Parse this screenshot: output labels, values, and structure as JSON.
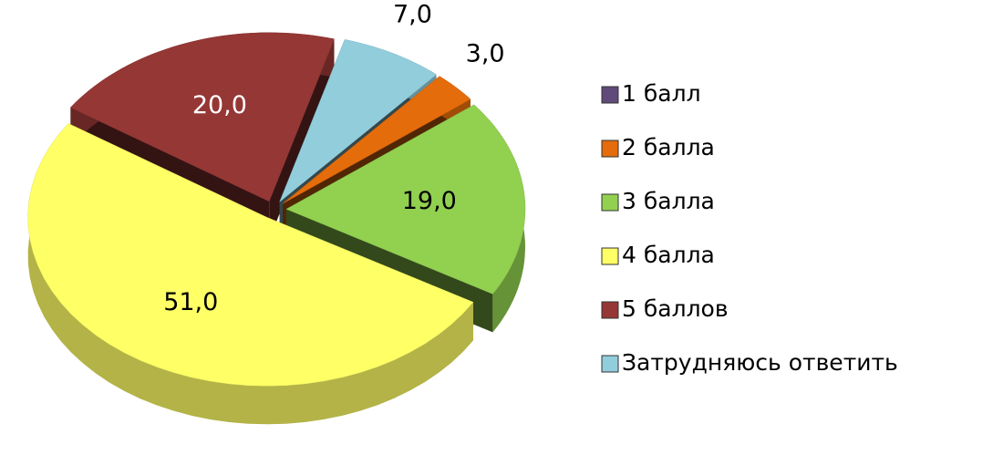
{
  "chart_data": {
    "type": "pie",
    "categories": [
      "1 балл",
      "2 балла",
      "3 балла",
      "4 балла",
      "5 баллов",
      "Затрудняюсь ответить"
    ],
    "values": [
      0,
      3,
      19,
      51,
      20,
      7
    ],
    "value_labels": [
      null,
      "3,0",
      "19,0",
      "51,0",
      "20,0",
      "7,0"
    ],
    "colors": [
      "#604a7b",
      "#e46c0a",
      "#92d050",
      "#ffff66",
      "#953735",
      "#92cddc"
    ],
    "legend": "right"
  }
}
